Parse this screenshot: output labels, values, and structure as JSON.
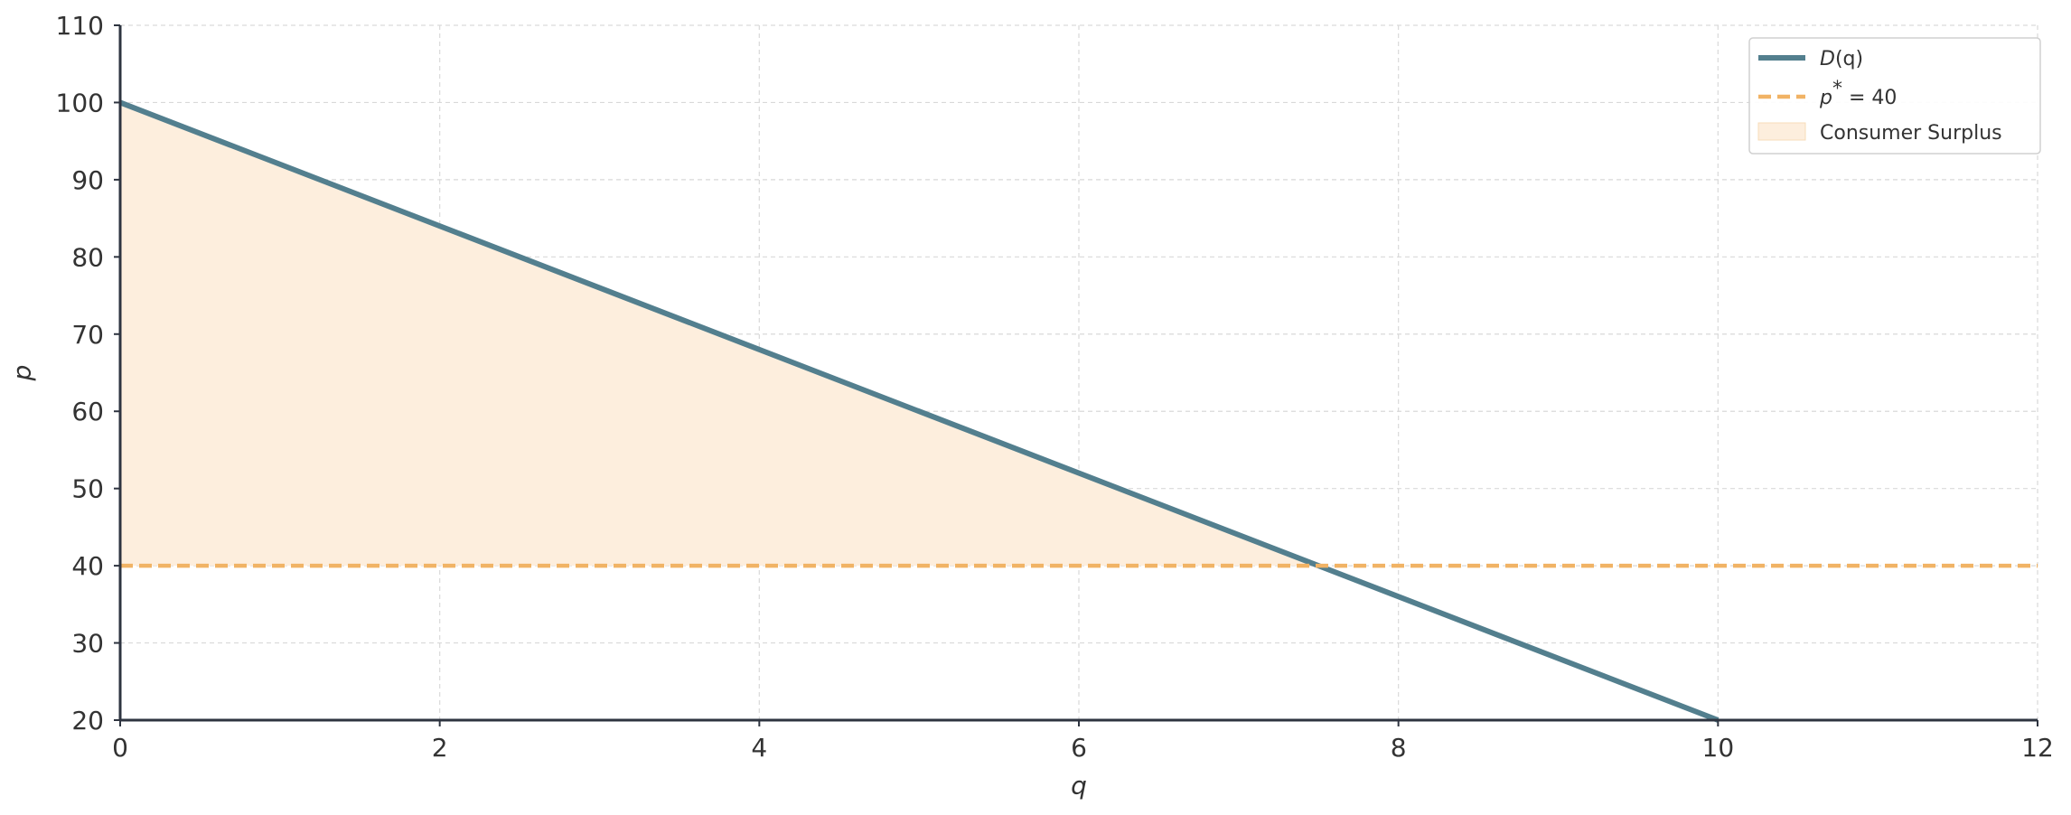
{
  "chart_data": {
    "type": "line",
    "title": "",
    "xlabel": "q",
    "ylabel": "p",
    "xlim": [
      0,
      12
    ],
    "ylim": [
      20,
      110
    ],
    "x_ticks": [
      0,
      2,
      4,
      6,
      8,
      10,
      12
    ],
    "y_ticks": [
      20,
      30,
      40,
      50,
      60,
      70,
      80,
      90,
      100,
      110
    ],
    "grid": true,
    "legend_position": "top-right",
    "series": [
      {
        "name": "D(q)",
        "kind": "line",
        "style": "solid",
        "color": "#537f8e",
        "x": [
          0,
          10
        ],
        "y": [
          100,
          20
        ]
      },
      {
        "name": "p* = 40",
        "kind": "line",
        "style": "dashed",
        "color": "#f1b365",
        "x": [
          0,
          12
        ],
        "y": [
          40,
          40
        ]
      },
      {
        "name": "Consumer Surplus",
        "kind": "area",
        "color": "#fdeedd",
        "x": [
          0,
          7.5,
          0
        ],
        "y": [
          100,
          40,
          40
        ]
      }
    ],
    "legend": {
      "demand": {
        "prefix": "D",
        "suffix": "(q)"
      },
      "price": {
        "base": "p",
        "sup": "*",
        "rest": " = 40"
      },
      "surplus": {
        "text": "Consumer Surplus"
      }
    }
  }
}
